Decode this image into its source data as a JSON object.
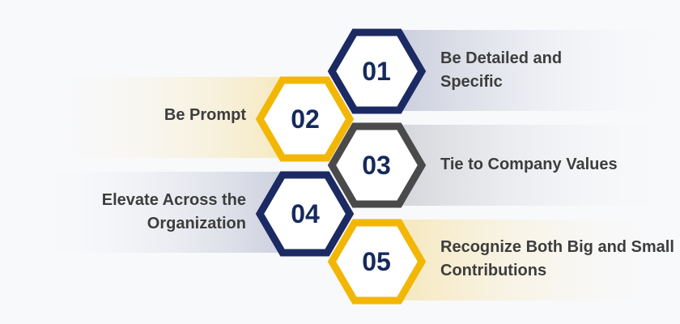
{
  "colors": {
    "navy": "#1b2a63",
    "gold": "#f2b705",
    "charcoal": "#4a4a4a",
    "number": "#152a5c",
    "text": "#3d3d3d"
  },
  "items": [
    {
      "number": "01",
      "label": "Be Detailed and Specific",
      "side": "right",
      "accent": "navy"
    },
    {
      "number": "02",
      "label": "Be Prompt",
      "side": "left",
      "accent": "gold"
    },
    {
      "number": "03",
      "label": "Tie to Company Values",
      "side": "right",
      "accent": "charcoal"
    },
    {
      "number": "04",
      "label": "Elevate Across the Organization",
      "side": "left",
      "accent": "navy"
    },
    {
      "number": "05",
      "label": "Recognize Both Big and Small Contributions",
      "side": "right",
      "accent": "gold"
    }
  ]
}
